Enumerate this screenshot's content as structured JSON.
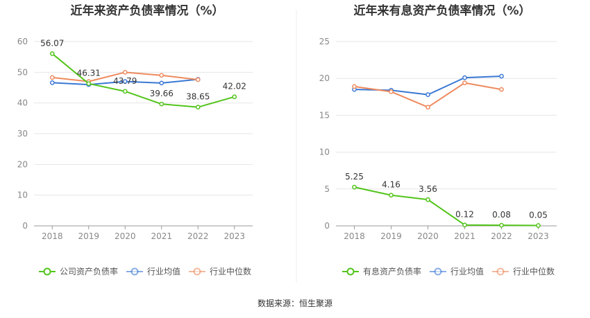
{
  "source_text": "数据来源：恒生聚源",
  "colors": {
    "primary": "#52c41a",
    "avg": "#3a78d4",
    "median": "#ee8a5d",
    "grid": "#e6e6e6",
    "axis": "#999999"
  },
  "chart_data": [
    {
      "type": "line",
      "title": "近年来资产负债率情况（%）",
      "categories": [
        "2018",
        "2019",
        "2020",
        "2021",
        "2022",
        "2023"
      ],
      "ylim": [
        0,
        60
      ],
      "yticks": [
        0,
        10,
        20,
        30,
        40,
        50,
        60
      ],
      "grid": true,
      "legend_position": "bottom",
      "series": [
        {
          "name": "公司资产负债率",
          "color": "#52c41a",
          "values": [
            56.07,
            46.31,
            43.79,
            39.66,
            38.65,
            42.02
          ],
          "labels": [
            "56.07",
            "46.31",
            "43.79",
            "39.66",
            "38.65",
            "42.02"
          ]
        },
        {
          "name": "行业均值",
          "color": "#3a78d4",
          "values": [
            46.6,
            46.0,
            47.0,
            46.5,
            47.7,
            null
          ],
          "labels": []
        },
        {
          "name": "行业中位数",
          "color": "#ee8a5d",
          "values": [
            48.3,
            47.0,
            50.0,
            49.0,
            47.6,
            null
          ],
          "labels": []
        }
      ]
    },
    {
      "type": "line",
      "title": "近年来有息资产负债率情况（%）",
      "categories": [
        "2018",
        "2019",
        "2020",
        "2021",
        "2022",
        "2023"
      ],
      "ylim": [
        0,
        25
      ],
      "yticks": [
        0,
        5,
        10,
        15,
        20,
        25
      ],
      "grid": true,
      "legend_position": "bottom",
      "series": [
        {
          "name": "有息资产负债率",
          "color": "#52c41a",
          "values": [
            5.25,
            4.16,
            3.56,
            0.12,
            0.08,
            0.05
          ],
          "labels": [
            "5.25",
            "4.16",
            "3.56",
            "0.12",
            "0.08",
            "0.05"
          ]
        },
        {
          "name": "行业均值",
          "color": "#3a78d4",
          "values": [
            18.5,
            18.4,
            17.8,
            20.1,
            20.3,
            null
          ],
          "labels": []
        },
        {
          "name": "行业中位数",
          "color": "#ee8a5d",
          "values": [
            18.9,
            18.2,
            16.1,
            19.4,
            18.5,
            null
          ],
          "labels": []
        }
      ]
    }
  ]
}
